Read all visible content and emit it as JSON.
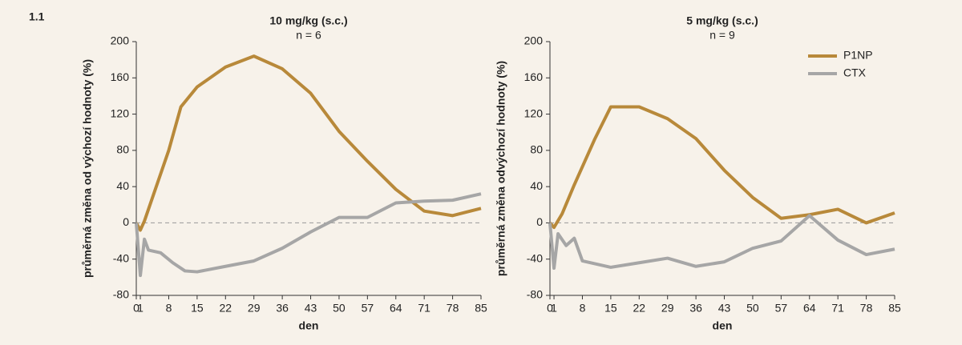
{
  "panel_label": "1.1",
  "chart_data": [
    {
      "type": "line",
      "title": "10 mg/kg (s.c.)",
      "subtitle": "n = 6",
      "xlabel": "den",
      "ylabel": "průměrná změna od výchozí hodnoty (%)",
      "xlim": [
        0,
        85
      ],
      "xticks": [
        0,
        1,
        8,
        15,
        22,
        29,
        36,
        43,
        50,
        57,
        64,
        71,
        78,
        85
      ],
      "ylim": [
        -80,
        200
      ],
      "yticks": [
        -80,
        -40,
        0,
        40,
        80,
        120,
        160,
        200
      ],
      "zero_line": true,
      "legend": false,
      "series": [
        {
          "color": "#b8893a",
          "x": [
            0,
            1,
            2,
            8,
            11,
            15,
            22,
            29,
            36,
            43,
            50,
            57,
            64,
            71,
            78,
            85
          ],
          "values": [
            0,
            -8,
            2,
            80,
            128,
            150,
            172,
            184,
            170,
            143,
            101,
            68,
            37,
            13,
            8,
            16
          ]
        },
        {
          "color": "#a6a6a6",
          "x": [
            0,
            1,
            2,
            3,
            6,
            9,
            12,
            15,
            22,
            29,
            36,
            43,
            50,
            57,
            64,
            71,
            78,
            85
          ],
          "values": [
            0,
            -58,
            -18,
            -30,
            -33,
            -44,
            -53,
            -54,
            -48,
            -42,
            -28,
            -10,
            6,
            6,
            22,
            24,
            25,
            32
          ]
        }
      ]
    },
    {
      "type": "line",
      "title": "5 mg/kg (s.c.)",
      "subtitle": "n = 9",
      "xlabel": "den",
      "ylabel": "průměrná změna odvýchozí hodnoty (%)",
      "xlim": [
        0,
        85
      ],
      "xticks": [
        0,
        1,
        8,
        15,
        22,
        29,
        36,
        43,
        50,
        57,
        64,
        71,
        78,
        85
      ],
      "ylim": [
        -80,
        200
      ],
      "yticks": [
        -80,
        -40,
        0,
        40,
        80,
        120,
        160,
        200
      ],
      "zero_line": true,
      "legend": true,
      "series": [
        {
          "name": "P1NP",
          "color": "#b8893a",
          "x": [
            0,
            1,
            3,
            6,
            11,
            15,
            22,
            29,
            36,
            43,
            50,
            57,
            64,
            71,
            78,
            85
          ],
          "values": [
            0,
            -5,
            10,
            42,
            92,
            128,
            128,
            115,
            93,
            58,
            28,
            5,
            9,
            15,
            0,
            11
          ]
        },
        {
          "name": "CTX",
          "color": "#a6a6a6",
          "x": [
            0,
            1,
            2,
            4,
            6,
            8,
            15,
            22,
            29,
            36,
            43,
            50,
            57,
            64,
            71,
            78,
            85
          ],
          "values": [
            0,
            -50,
            -12,
            -25,
            -17,
            -42,
            -49,
            -44,
            -39,
            -48,
            -43,
            -28,
            -20,
            8,
            -19,
            -35,
            -29
          ]
        }
      ]
    }
  ]
}
